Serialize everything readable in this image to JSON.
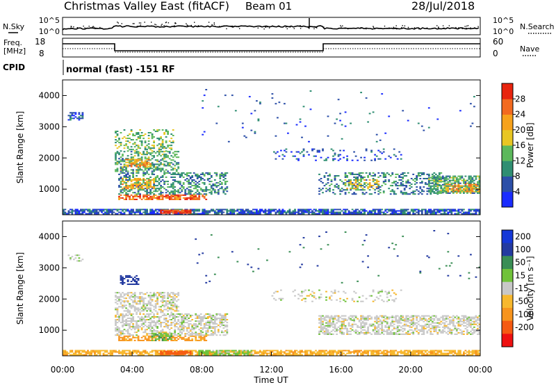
{
  "header": {
    "station": "Christmas Valley East (fitACF)",
    "beam": "Beam 01",
    "date": "28/Jul/2018"
  },
  "top_panels": {
    "nsky_label": "N.Sky",
    "nsearch_label": "N.Search",
    "noise_ticks": [
      "10^5",
      "10^0"
    ],
    "freq_label_1": "Freq.",
    "freq_label_2": "[MHz]",
    "freq_ticks": [
      "18",
      "8"
    ],
    "nave_label": "Nave",
    "nave_ticks": [
      "60",
      "0"
    ],
    "cpid_label": "CPID",
    "cpid_text": "normal (fast) -151 RF"
  },
  "colors": {
    "power_scale": [
      "#1a2cff",
      "#2c4fa8",
      "#2f8e72",
      "#5cb85c",
      "#e8c623",
      "#f7a21b",
      "#f26a1f",
      "#e8240e"
    ],
    "velocity_scale": [
      "#ee1111",
      "#f55a12",
      "#f7941d",
      "#f7b82e",
      "#c8c8c8",
      "#70c23a",
      "#3a8e55",
      "#233aa0",
      "#1538d8"
    ],
    "ground_scatter": "#c8c8c8"
  },
  "chart_data": [
    {
      "type": "heatmap",
      "name": "power",
      "ylabel": "Slant Range [km]",
      "ylim": [
        180,
        4500
      ],
      "y_ticks": [
        "1000",
        "2000",
        "3000",
        "4000"
      ],
      "y_tick_values": [
        1000,
        2000,
        3000,
        4000
      ],
      "xlim_hours": [
        0,
        24
      ],
      "colorbar": {
        "label": "Power [dB]",
        "range": [
          0,
          32
        ],
        "tick_labels": [
          "4",
          "8",
          "12",
          "16",
          "20",
          "24",
          "28"
        ],
        "tick_values": [
          4,
          8,
          12,
          16,
          20,
          24,
          28
        ]
      },
      "regions": [
        {
          "t0": 0.0,
          "t1": 24.0,
          "r0": 190,
          "r1": 330,
          "value": 6,
          "density": 0.75
        },
        {
          "t0": 5.6,
          "t1": 7.3,
          "r0": 210,
          "r1": 320,
          "value": 29,
          "density": 0.85
        },
        {
          "t0": 3.2,
          "t1": 8.2,
          "r0": 650,
          "r1": 820,
          "value": 26,
          "density": 0.7
        },
        {
          "t0": 3.2,
          "t1": 9.4,
          "r0": 820,
          "r1": 1500,
          "value": 10,
          "density": 0.45
        },
        {
          "t0": 3.4,
          "t1": 5.2,
          "r0": 1000,
          "r1": 1350,
          "value": 20,
          "density": 0.5
        },
        {
          "t0": 3.0,
          "t1": 6.6,
          "r0": 1550,
          "r1": 2200,
          "value": 12,
          "density": 0.45
        },
        {
          "t0": 3.6,
          "t1": 5.0,
          "r0": 1700,
          "r1": 1950,
          "value": 22,
          "density": 0.6
        },
        {
          "t0": 3.0,
          "t1": 6.3,
          "r0": 2200,
          "r1": 2900,
          "value": 14,
          "density": 0.3
        },
        {
          "t0": 0.3,
          "t1": 1.1,
          "r0": 3200,
          "r1": 3450,
          "value": 6,
          "density": 0.45
        },
        {
          "t0": 14.7,
          "t1": 22.0,
          "r0": 820,
          "r1": 1500,
          "value": 9,
          "density": 0.3
        },
        {
          "t0": 16.2,
          "t1": 18.2,
          "r0": 1000,
          "r1": 1300,
          "value": 18,
          "density": 0.35
        },
        {
          "t0": 21.0,
          "t1": 24.0,
          "r0": 850,
          "r1": 1400,
          "value": 12,
          "density": 0.7
        },
        {
          "t0": 22.0,
          "t1": 24.0,
          "r0": 900,
          "r1": 1150,
          "value": 22,
          "density": 0.5
        },
        {
          "t0": 12.0,
          "t1": 19.5,
          "r0": 1900,
          "r1": 2300,
          "value": 6,
          "density": 0.14
        },
        {
          "t0": 7.5,
          "t1": 24.0,
          "r0": 2500,
          "r1": 4200,
          "value": 6,
          "density": 0.012
        }
      ]
    },
    {
      "type": "heatmap",
      "name": "velocity",
      "ylabel": "Slant Range [km]",
      "ylim": [
        180,
        4500
      ],
      "y_ticks": [
        "1000",
        "2000",
        "3000",
        "4000"
      ],
      "y_tick_values": [
        1000,
        2000,
        3000,
        4000
      ],
      "xlabel": "Time UT",
      "x_ticks": [
        "00:00",
        "04:00",
        "08:00",
        "12:00",
        "16:00",
        "20:00",
        "00:00"
      ],
      "x_tick_hours": [
        0,
        4,
        8,
        12,
        16,
        20,
        24
      ],
      "colorbar": {
        "label": "Velocity [m s⁻¹]",
        "tick_labels": [
          "200",
          "100",
          "50",
          "15",
          "-15",
          "-50",
          "-100",
          "-200"
        ],
        "tick_values": [
          200,
          100,
          50,
          15,
          -15,
          -50,
          -100,
          -200
        ]
      },
      "regions": [
        {
          "t0": 0.0,
          "t1": 24.0,
          "r0": 190,
          "r1": 330,
          "value": -40,
          "density": 0.75
        },
        {
          "t0": 7.8,
          "t1": 10.8,
          "r0": 190,
          "r1": 330,
          "value": 30,
          "density": 0.6
        },
        {
          "t0": 5.6,
          "t1": 7.3,
          "r0": 210,
          "r1": 320,
          "value": -180,
          "density": 0.85
        },
        {
          "t0": 3.2,
          "t1": 8.2,
          "r0": 650,
          "r1": 820,
          "value": -60,
          "density": 0.6
        },
        {
          "t0": 3.0,
          "t1": 9.4,
          "r0": 820,
          "r1": 1500,
          "value": 0,
          "density": 0.55
        },
        {
          "t0": 5.1,
          "t1": 6.2,
          "r0": 650,
          "r1": 900,
          "value": 40,
          "density": 0.55
        },
        {
          "t0": 3.0,
          "t1": 6.6,
          "r0": 1550,
          "r1": 2200,
          "value": 0,
          "density": 0.55
        },
        {
          "t0": 3.3,
          "t1": 4.3,
          "r0": 2450,
          "r1": 2750,
          "value": 150,
          "density": 0.5
        },
        {
          "t0": 0.3,
          "t1": 1.1,
          "r0": 3200,
          "r1": 3450,
          "value": 0,
          "density": 0.35
        },
        {
          "t0": 14.7,
          "t1": 24.0,
          "r0": 850,
          "r1": 1450,
          "value": 0,
          "density": 0.55
        },
        {
          "t0": 12.0,
          "t1": 19.5,
          "r0": 1900,
          "r1": 2300,
          "value": 0,
          "density": 0.16
        },
        {
          "t0": 7.5,
          "t1": 24.0,
          "r0": 2500,
          "r1": 4200,
          "value": 100,
          "density": 0.012
        }
      ]
    }
  ]
}
